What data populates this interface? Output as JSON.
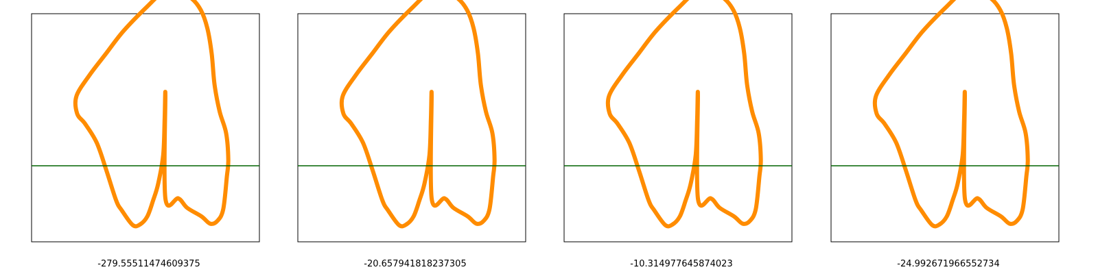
{
  "chart_data": [
    {
      "type": "line",
      "title": "",
      "xlabel": "-279.55511474609375",
      "ylabel": "",
      "grid": false,
      "series": [
        {
          "role": "shape-outline",
          "color": "#ff8c00",
          "points": [
            [
              0.3,
              0.97
            ],
            [
              0.29,
              0.65
            ],
            [
              0.27,
              0.15
            ],
            [
              0.2,
              -0.25
            ],
            [
              0.13,
              -0.48
            ],
            [
              0.05,
              -0.7
            ],
            [
              -0.05,
              -0.81
            ],
            [
              -0.15,
              -0.82
            ],
            [
              -0.3,
              -0.62
            ],
            [
              -0.38,
              -0.48
            ],
            [
              -0.52,
              -0.05
            ],
            [
              -0.65,
              0.32
            ],
            [
              -0.81,
              0.58
            ],
            [
              -0.92,
              0.72
            ],
            [
              -0.93,
              0.96
            ],
            [
              -0.75,
              1.25
            ],
            [
              -0.52,
              1.55
            ],
            [
              -0.28,
              1.86
            ],
            [
              0.05,
              2.2
            ],
            [
              0.26,
              2.38
            ],
            [
              0.48,
              2.38
            ],
            [
              0.65,
              2.32
            ],
            [
              0.79,
              2.15
            ],
            [
              0.88,
              1.9
            ],
            [
              0.94,
              1.55
            ],
            [
              0.98,
              1.12
            ],
            [
              1.05,
              0.75
            ],
            [
              1.14,
              0.45
            ],
            [
              1.17,
              0.08
            ],
            [
              1.15,
              -0.15
            ],
            [
              1.1,
              -0.6
            ],
            [
              1.02,
              -0.76
            ],
            [
              0.92,
              -0.8
            ],
            [
              0.8,
              -0.7
            ],
            [
              0.6,
              -0.58
            ],
            [
              0.48,
              -0.45
            ],
            [
              0.3,
              -0.45
            ]
          ]
        },
        {
          "role": "baseline",
          "color": "#006400",
          "y": 0
        }
      ]
    },
    {
      "type": "line",
      "title": "",
      "xlabel": "-20.657941818237305",
      "ylabel": "",
      "grid": false,
      "series": [
        {
          "role": "shape-outline",
          "color": "#ff8c00",
          "points": [
            [
              0.3,
              0.97
            ],
            [
              0.29,
              0.65
            ],
            [
              0.27,
              0.15
            ],
            [
              0.2,
              -0.25
            ],
            [
              0.13,
              -0.48
            ],
            [
              0.05,
              -0.7
            ],
            [
              -0.05,
              -0.81
            ],
            [
              -0.15,
              -0.82
            ],
            [
              -0.3,
              -0.62
            ],
            [
              -0.38,
              -0.48
            ],
            [
              -0.52,
              -0.05
            ],
            [
              -0.65,
              0.32
            ],
            [
              -0.81,
              0.58
            ],
            [
              -0.92,
              0.72
            ],
            [
              -0.93,
              0.96
            ],
            [
              -0.75,
              1.25
            ],
            [
              -0.52,
              1.55
            ],
            [
              -0.28,
              1.86
            ],
            [
              0.05,
              2.2
            ],
            [
              0.26,
              2.38
            ],
            [
              0.48,
              2.38
            ],
            [
              0.65,
              2.32
            ],
            [
              0.79,
              2.15
            ],
            [
              0.88,
              1.9
            ],
            [
              0.94,
              1.55
            ],
            [
              0.98,
              1.12
            ],
            [
              1.05,
              0.75
            ],
            [
              1.14,
              0.45
            ],
            [
              1.17,
              0.08
            ],
            [
              1.15,
              -0.15
            ],
            [
              1.1,
              -0.6
            ],
            [
              1.02,
              -0.76
            ],
            [
              0.92,
              -0.8
            ],
            [
              0.8,
              -0.7
            ],
            [
              0.6,
              -0.58
            ],
            [
              0.48,
              -0.45
            ],
            [
              0.3,
              -0.45
            ]
          ]
        },
        {
          "role": "baseline",
          "color": "#006400",
          "y": 0
        }
      ]
    },
    {
      "type": "line",
      "title": "",
      "xlabel": "-10.314977645874023",
      "ylabel": "",
      "grid": false,
      "series": [
        {
          "role": "shape-outline",
          "color": "#ff8c00",
          "points": [
            [
              0.3,
              0.97
            ],
            [
              0.29,
              0.65
            ],
            [
              0.27,
              0.15
            ],
            [
              0.2,
              -0.25
            ],
            [
              0.13,
              -0.48
            ],
            [
              0.05,
              -0.7
            ],
            [
              -0.05,
              -0.81
            ],
            [
              -0.15,
              -0.82
            ],
            [
              -0.3,
              -0.62
            ],
            [
              -0.38,
              -0.48
            ],
            [
              -0.52,
              -0.05
            ],
            [
              -0.65,
              0.32
            ],
            [
              -0.81,
              0.58
            ],
            [
              -0.92,
              0.72
            ],
            [
              -0.93,
              0.96
            ],
            [
              -0.75,
              1.25
            ],
            [
              -0.52,
              1.55
            ],
            [
              -0.28,
              1.86
            ],
            [
              0.05,
              2.2
            ],
            [
              0.26,
              2.38
            ],
            [
              0.48,
              2.38
            ],
            [
              0.65,
              2.32
            ],
            [
              0.79,
              2.15
            ],
            [
              0.88,
              1.9
            ],
            [
              0.94,
              1.55
            ],
            [
              0.98,
              1.12
            ],
            [
              1.05,
              0.75
            ],
            [
              1.14,
              0.45
            ],
            [
              1.17,
              0.08
            ],
            [
              1.15,
              -0.15
            ],
            [
              1.1,
              -0.6
            ],
            [
              1.02,
              -0.76
            ],
            [
              0.92,
              -0.8
            ],
            [
              0.8,
              -0.7
            ],
            [
              0.6,
              -0.58
            ],
            [
              0.48,
              -0.45
            ],
            [
              0.3,
              -0.45
            ]
          ]
        },
        {
          "role": "baseline",
          "color": "#006400",
          "y": 0
        }
      ]
    },
    {
      "type": "line",
      "title": "",
      "xlabel": "-24.992671966552734",
      "ylabel": "",
      "grid": false,
      "series": [
        {
          "role": "shape-outline",
          "color": "#ff8c00",
          "points": [
            [
              0.3,
              0.97
            ],
            [
              0.29,
              0.65
            ],
            [
              0.27,
              0.15
            ],
            [
              0.2,
              -0.25
            ],
            [
              0.13,
              -0.48
            ],
            [
              0.05,
              -0.7
            ],
            [
              -0.05,
              -0.81
            ],
            [
              -0.15,
              -0.82
            ],
            [
              -0.3,
              -0.62
            ],
            [
              -0.38,
              -0.48
            ],
            [
              -0.52,
              -0.05
            ],
            [
              -0.65,
              0.32
            ],
            [
              -0.81,
              0.58
            ],
            [
              -0.92,
              0.72
            ],
            [
              -0.93,
              0.96
            ],
            [
              -0.75,
              1.25
            ],
            [
              -0.52,
              1.55
            ],
            [
              -0.28,
              1.86
            ],
            [
              0.05,
              2.2
            ],
            [
              0.26,
              2.38
            ],
            [
              0.48,
              2.38
            ],
            [
              0.65,
              2.32
            ],
            [
              0.79,
              2.15
            ],
            [
              0.88,
              1.9
            ],
            [
              0.94,
              1.55
            ],
            [
              0.98,
              1.12
            ],
            [
              1.05,
              0.75
            ],
            [
              1.14,
              0.45
            ],
            [
              1.17,
              0.08
            ],
            [
              1.15,
              -0.15
            ],
            [
              1.1,
              -0.6
            ],
            [
              1.02,
              -0.76
            ],
            [
              0.92,
              -0.8
            ],
            [
              0.8,
              -0.7
            ],
            [
              0.6,
              -0.58
            ],
            [
              0.48,
              -0.45
            ],
            [
              0.3,
              -0.45
            ]
          ]
        },
        {
          "role": "baseline",
          "color": "#006400",
          "y": 0
        }
      ]
    }
  ]
}
